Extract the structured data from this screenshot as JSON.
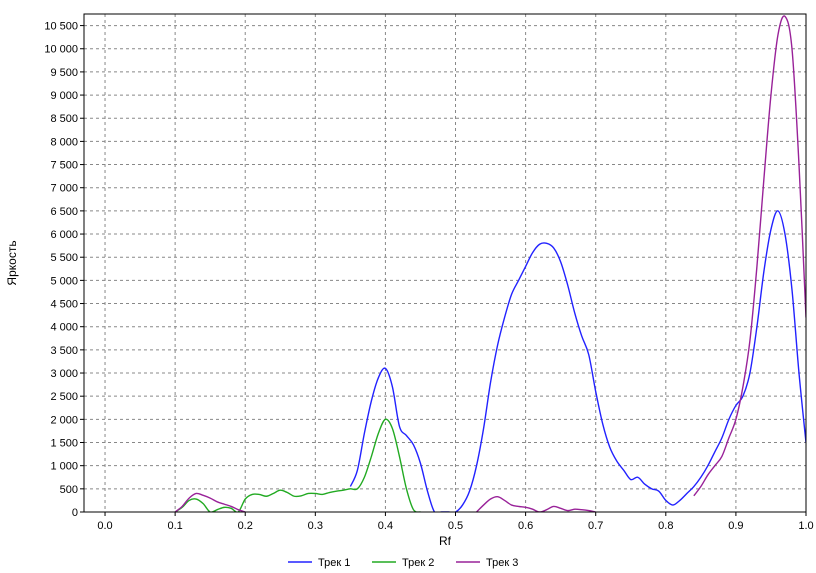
{
  "chart_data": {
    "type": "line",
    "title": "",
    "xlabel": "Rf",
    "ylabel": "Яркость",
    "xlim": [
      -0.03,
      1.0
    ],
    "ylim": [
      0,
      10750
    ],
    "x_ticks": [
      0.0,
      0.1,
      0.2,
      0.3,
      0.4,
      0.5,
      0.6,
      0.7,
      0.8,
      0.9,
      1.0
    ],
    "x_tick_labels": [
      "0.0",
      "0.1",
      "0.2",
      "0.3",
      "0.4",
      "0.5",
      "0.6",
      "0.7",
      "0.8",
      "0.9",
      "1.0"
    ],
    "y_ticks": [
      0,
      500,
      1000,
      1500,
      2000,
      2500,
      3000,
      3500,
      4000,
      4500,
      5000,
      5500,
      6000,
      6500,
      7000,
      7500,
      8000,
      8500,
      9000,
      9500,
      10000,
      10500
    ],
    "y_tick_labels": [
      "0",
      "500",
      "1 000",
      "1 500",
      "2 000",
      "2 500",
      "3 000",
      "3 500",
      "4 000",
      "4 500",
      "5 000",
      "5 500",
      "6 000",
      "6 500",
      "7 000",
      "7 500",
      "8 000",
      "8 500",
      "9 000",
      "9 500",
      "10 000",
      "10 500"
    ],
    "grid": true,
    "legend_position": "bottom-center",
    "series": [
      {
        "name": "Трек 1",
        "color": "#2222ff",
        "x": [
          0.35,
          0.36,
          0.37,
          0.38,
          0.39,
          0.4,
          0.41,
          0.42,
          0.43,
          0.44,
          0.45,
          0.46,
          0.47,
          0.48,
          0.49,
          0.5,
          0.51,
          0.52,
          0.53,
          0.54,
          0.55,
          0.56,
          0.57,
          0.58,
          0.59,
          0.6,
          0.61,
          0.62,
          0.63,
          0.64,
          0.65,
          0.66,
          0.67,
          0.68,
          0.69,
          0.7,
          0.71,
          0.72,
          0.73,
          0.74,
          0.75,
          0.76,
          0.77,
          0.78,
          0.79,
          0.8,
          0.81,
          0.82,
          0.83,
          0.84,
          0.85,
          0.86,
          0.87,
          0.88,
          0.89,
          0.9,
          0.91,
          0.92,
          0.93,
          0.94,
          0.95,
          0.96,
          0.97,
          0.98,
          0.99,
          1.0
        ],
        "y": [
          550,
          900,
          1700,
          2400,
          2900,
          3100,
          2700,
          1850,
          1650,
          1450,
          1050,
          450,
          0,
          0,
          0,
          0,
          150,
          450,
          1000,
          1800,
          2800,
          3600,
          4200,
          4700,
          5000,
          5300,
          5600,
          5780,
          5800,
          5700,
          5400,
          4900,
          4300,
          3800,
          3400,
          2600,
          1900,
          1400,
          1100,
          900,
          700,
          750,
          600,
          500,
          450,
          250,
          150,
          250,
          400,
          550,
          750,
          1000,
          1300,
          1600,
          2000,
          2300,
          2500,
          3000,
          4000,
          5200,
          6100,
          6500,
          6000,
          4800,
          3000,
          1500
        ]
      },
      {
        "name": "Трек 2",
        "color": "#22aa22",
        "x": [
          0.1,
          0.11,
          0.12,
          0.13,
          0.14,
          0.15,
          0.16,
          0.17,
          0.18,
          0.19,
          0.2,
          0.21,
          0.22,
          0.23,
          0.24,
          0.25,
          0.26,
          0.27,
          0.28,
          0.29,
          0.3,
          0.31,
          0.32,
          0.33,
          0.34,
          0.35,
          0.36,
          0.37,
          0.38,
          0.39,
          0.4,
          0.41,
          0.42,
          0.43,
          0.44,
          0.45
        ],
        "y": [
          0,
          100,
          250,
          280,
          180,
          0,
          50,
          100,
          80,
          0,
          280,
          380,
          380,
          340,
          400,
          470,
          420,
          340,
          350,
          400,
          400,
          380,
          420,
          450,
          470,
          500,
          500,
          750,
          1200,
          1700,
          2000,
          1800,
          1200,
          500,
          50,
          0
        ]
      },
      {
        "name": "Трек 3",
        "color": "#992299",
        "x": [
          0.1,
          0.11,
          0.12,
          0.13,
          0.14,
          0.15,
          0.16,
          0.17,
          0.18,
          0.19,
          0.2,
          0.53,
          0.54,
          0.55,
          0.56,
          0.57,
          0.58,
          0.59,
          0.6,
          0.61,
          0.62,
          0.63,
          0.64,
          0.65,
          0.66,
          0.67,
          0.68,
          0.69,
          0.7,
          0.84,
          0.85,
          0.86,
          0.87,
          0.88,
          0.89,
          0.9,
          0.91,
          0.92,
          0.93,
          0.94,
          0.95,
          0.96,
          0.97,
          0.98,
          0.99,
          1.0
        ],
        "y": [
          0,
          120,
          300,
          400,
          360,
          300,
          220,
          170,
          120,
          50,
          0,
          0,
          150,
          280,
          330,
          250,
          150,
          120,
          100,
          60,
          0,
          50,
          120,
          80,
          30,
          60,
          50,
          30,
          0,
          350,
          550,
          800,
          1000,
          1200,
          1600,
          2000,
          2700,
          3700,
          5300,
          7200,
          9000,
          10300,
          10700,
          10000,
          7500,
          4200
        ]
      }
    ]
  }
}
